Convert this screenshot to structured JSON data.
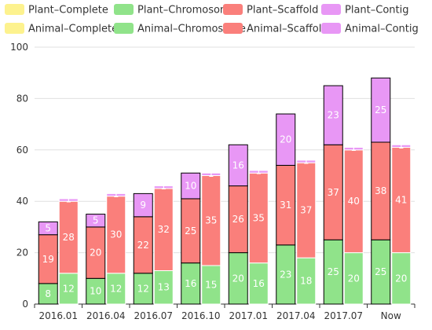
{
  "chart_data": {
    "type": "bar",
    "stacked": true,
    "categories": [
      "2016.01",
      "2016.04",
      "2016.07",
      "2016.10",
      "2017.01",
      "2017.04",
      "2017.07",
      "Now"
    ],
    "ylim": [
      0,
      100
    ],
    "yticks": [
      0,
      20,
      40,
      60,
      80,
      100
    ],
    "grid": true,
    "legend_position": "top",
    "colors": {
      "Complete": "#fdf28e",
      "Chromosome": "#90e38a",
      "Scaffold": "#fa7f7b",
      "Contig": "#e897f5"
    },
    "series": [
      {
        "name": "Plant–Complete",
        "group": "Plant",
        "level": "Complete",
        "values": [
          0,
          0,
          0,
          0,
          0,
          0,
          0,
          0
        ]
      },
      {
        "name": "Plant–Chromosome",
        "group": "Plant",
        "level": "Chromosome",
        "values": [
          8,
          10,
          12,
          16,
          20,
          23,
          25,
          25
        ]
      },
      {
        "name": "Plant–Scaffold",
        "group": "Plant",
        "level": "Scaffold",
        "values": [
          19,
          20,
          22,
          25,
          26,
          31,
          37,
          38
        ]
      },
      {
        "name": "Plant–Contig",
        "group": "Plant",
        "level": "Contig",
        "values": [
          5,
          5,
          9,
          10,
          16,
          20,
          23,
          25
        ]
      },
      {
        "name": "Animal–Complete",
        "group": "Animal",
        "level": "Complete",
        "values": [
          0,
          0,
          0,
          0,
          0,
          0,
          0,
          0
        ]
      },
      {
        "name": "Animal–Chromosome",
        "group": "Animal",
        "level": "Chromosome",
        "values": [
          12,
          12,
          13,
          15,
          16,
          18,
          20,
          20
        ]
      },
      {
        "name": "Animal–Scaffold",
        "group": "Animal",
        "level": "Scaffold",
        "values": [
          28,
          30,
          32,
          35,
          35,
          37,
          40,
          41
        ]
      },
      {
        "name": "Animal–Contig",
        "group": "Animal",
        "level": "Contig",
        "values": [
          1,
          1,
          1,
          1,
          1,
          1,
          1,
          1
        ]
      }
    ]
  }
}
